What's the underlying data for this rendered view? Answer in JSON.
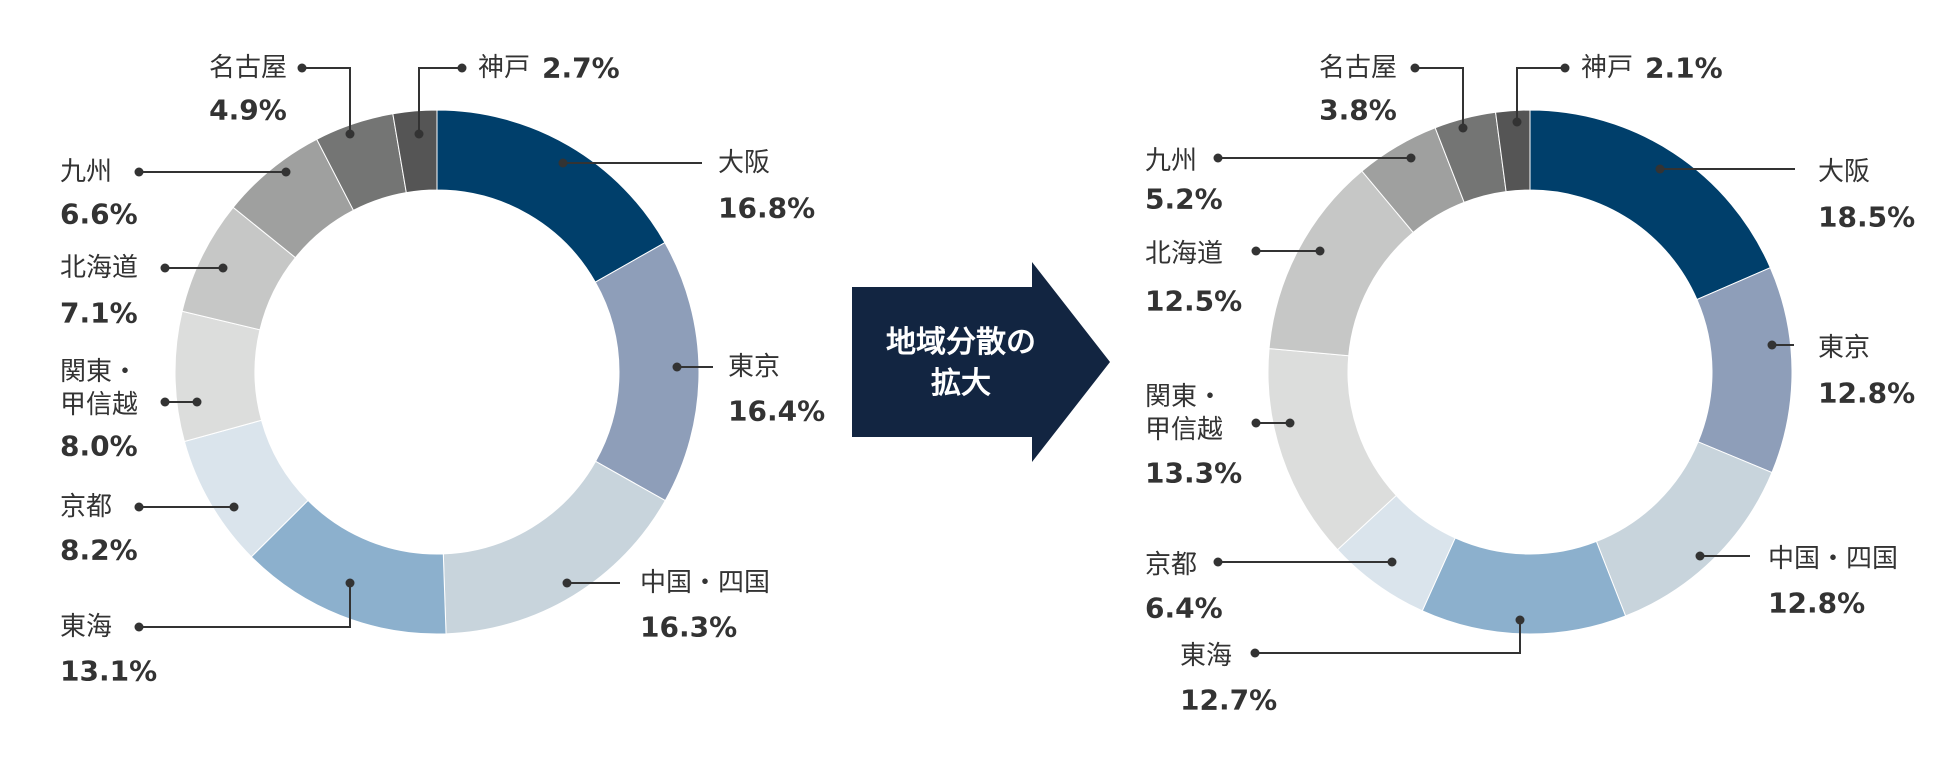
{
  "colors": {
    "osaka": "#003f6b",
    "tokyo": "#8e9eb9",
    "chugoku_shikoku": "#c8d4dc",
    "tokai": "#8cb0cd",
    "kyoto": "#dae4ec",
    "kanto_koshinetsu": "#dcdddc",
    "hokkaido": "#c6c7c6",
    "kyushu": "#9fa09f",
    "nagoya": "#747574",
    "kobe": "#555555",
    "arrow": "#122541",
    "text": "#333333",
    "leader": "#333333"
  },
  "arrow": {
    "lines": [
      "地域分散の",
      "拡大"
    ]
  },
  "chart_data": [
    {
      "type": "pie",
      "donut": true,
      "slices": [
        {
          "name": [
            "大阪"
          ],
          "value": 16.8,
          "value_label": "16.8%",
          "color_key": "osaka"
        },
        {
          "name": [
            "東京"
          ],
          "value": 16.4,
          "value_label": "16.4%",
          "color_key": "tokyo"
        },
        {
          "name": [
            "中国・四国"
          ],
          "value": 16.3,
          "value_label": "16.3%",
          "color_key": "chugoku_shikoku"
        },
        {
          "name": [
            "東海"
          ],
          "value": 13.1,
          "value_label": "13.1%",
          "color_key": "tokai"
        },
        {
          "name": [
            "京都"
          ],
          "value": 8.2,
          "value_label": "8.2%",
          "color_key": "kyoto"
        },
        {
          "name": [
            "関東・",
            "甲信越"
          ],
          "value": 8.0,
          "value_label": "8.0%",
          "color_key": "kanto_koshinetsu"
        },
        {
          "name": [
            "北海道"
          ],
          "value": 7.1,
          "value_label": "7.1%",
          "color_key": "hokkaido"
        },
        {
          "name": [
            "九州"
          ],
          "value": 6.6,
          "value_label": "6.6%",
          "color_key": "kyushu"
        },
        {
          "name": [
            "名古屋"
          ],
          "value": 4.9,
          "value_label": "4.9%",
          "color_key": "nagoya"
        },
        {
          "name": [
            "神戸"
          ],
          "value": 2.7,
          "value_label": "2.7%",
          "color_key": "kobe"
        }
      ]
    },
    {
      "type": "pie",
      "donut": true,
      "slices": [
        {
          "name": [
            "大阪"
          ],
          "value": 18.5,
          "value_label": "18.5%",
          "color_key": "osaka"
        },
        {
          "name": [
            "東京"
          ],
          "value": 12.8,
          "value_label": "12.8%",
          "color_key": "tokyo"
        },
        {
          "name": [
            "中国・四国"
          ],
          "value": 12.8,
          "value_label": "12.8%",
          "color_key": "chugoku_shikoku"
        },
        {
          "name": [
            "東海"
          ],
          "value": 12.7,
          "value_label": "12.7%",
          "color_key": "tokai"
        },
        {
          "name": [
            "京都"
          ],
          "value": 6.4,
          "value_label": "6.4%",
          "color_key": "kyoto"
        },
        {
          "name": [
            "関東・",
            "甲信越"
          ],
          "value": 13.3,
          "value_label": "13.3%",
          "color_key": "kanto_koshinetsu"
        },
        {
          "name": [
            "北海道"
          ],
          "value": 12.5,
          "value_label": "12.5%",
          "color_key": "hokkaido"
        },
        {
          "name": [
            "九州"
          ],
          "value": 5.2,
          "value_label": "5.2%",
          "color_key": "kyushu"
        },
        {
          "name": [
            "名古屋"
          ],
          "value": 3.8,
          "value_label": "3.8%",
          "color_key": "nagoya"
        },
        {
          "name": [
            "神戸"
          ],
          "value": 2.1,
          "value_label": "2.1%",
          "color_key": "kobe"
        }
      ]
    }
  ]
}
